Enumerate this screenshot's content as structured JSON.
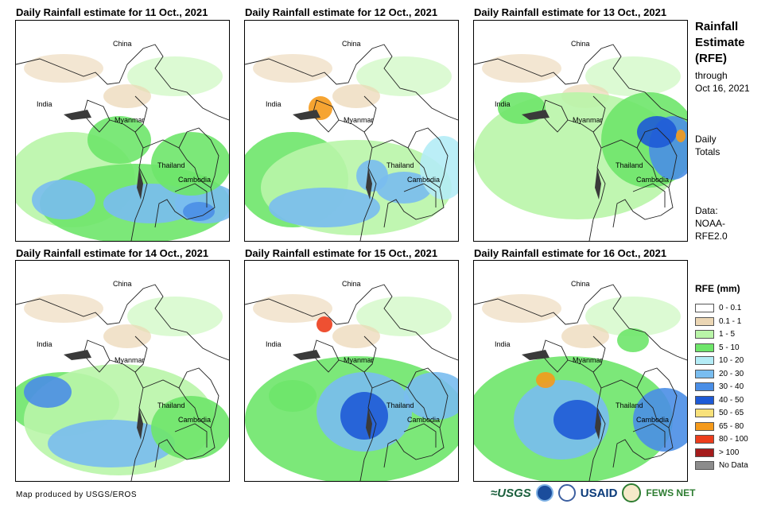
{
  "panels": [
    {
      "title": "Daily Rainfall estimate for 11 Oct., 2021"
    },
    {
      "title": "Daily Rainfall estimate for 12 Oct., 2021"
    },
    {
      "title": "Daily Rainfall estimate for 13 Oct., 2021"
    },
    {
      "title": "Daily Rainfall estimate for 14 Oct., 2021"
    },
    {
      "title": "Daily Rainfall estimate for 15 Oct., 2021"
    },
    {
      "title": "Daily Rainfall estimate for 16 Oct., 2021"
    }
  ],
  "map_labels": {
    "china": "China",
    "india": "India",
    "myanmar": "Myanmar",
    "thailand": "Thailand",
    "cambodia": "Cambodia"
  },
  "sidebar": {
    "title_line1": "Rainfall",
    "title_line2": "Estimate",
    "title_line3": "(RFE)",
    "through": "through",
    "date": "Oct 16, 2021",
    "daily": "Daily",
    "totals": "Totals",
    "data_label": "Data:",
    "data_source1": "NOAA-",
    "data_source2": "RFE2.0"
  },
  "legend": {
    "title": "RFE (mm)",
    "items": [
      {
        "label": "0 - 0.1",
        "color": "#ffffff"
      },
      {
        "label": "0.1 - 1",
        "color": "#ebd6b4"
      },
      {
        "label": "1 - 5",
        "color": "#b9f5a8"
      },
      {
        "label": "5 - 10",
        "color": "#6ee66a"
      },
      {
        "label": "10 - 20",
        "color": "#b4ecf6"
      },
      {
        "label": "20 - 30",
        "color": "#79bdf0"
      },
      {
        "label": "30 - 40",
        "color": "#4a8ee6"
      },
      {
        "label": "40 - 50",
        "color": "#1e5ad6"
      },
      {
        "label": "50 - 65",
        "color": "#f8e17a"
      },
      {
        "label": "65 - 80",
        "color": "#f59a1b"
      },
      {
        "label": "80 - 100",
        "color": "#ec3d1c"
      },
      {
        "label": "> 100",
        "color": "#a51c1c"
      },
      {
        "label": "No Data",
        "color": "#8c8c8c"
      }
    ]
  },
  "footer": {
    "credit": "Map produced by USGS/EROS",
    "logo_usgs": "≈USGS",
    "logo_usaid": "USAID",
    "logo_fews": "FEWS NET"
  }
}
